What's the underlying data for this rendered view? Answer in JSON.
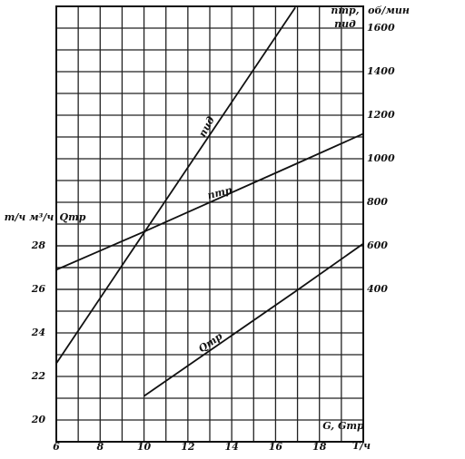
{
  "chart_data": {
    "type": "line",
    "x": [
      6,
      10,
      16.9,
      20
    ],
    "xlim": [
      6,
      20
    ],
    "xticks": [
      6,
      8,
      10,
      12,
      14,
      16,
      18
    ],
    "ylim": [
      19,
      39
    ],
    "yticks": [
      20,
      22,
      24,
      26,
      28
    ],
    "y2lim": [
      -300,
      1700
    ],
    "y2ticks": [
      400,
      600,
      800,
      1000,
      1200,
      1400,
      1600
    ],
    "grid": true,
    "y_label": "т/ч м³/ч",
    "y_label_2": "Qтр",
    "y2_label": "об/мин",
    "y2_label_2": "nтр,",
    "y2_label_3": "nид",
    "x_label": "G, Gтр",
    "x_label_2": "T/ч",
    "series": [
      {
        "name": "nид",
        "color": "#111111",
        "axis": "y2",
        "values": [
          60,
          660,
          1695,
          null
        ]
      },
      {
        "name": "nтр",
        "color": "#111111",
        "axis": "y2",
        "values": [
          490,
          665,
          975,
          1115
        ]
      },
      {
        "name": "Qтр",
        "color": "#111111",
        "values": [
          null,
          21.1,
          25.9,
          28.1
        ]
      }
    ]
  }
}
